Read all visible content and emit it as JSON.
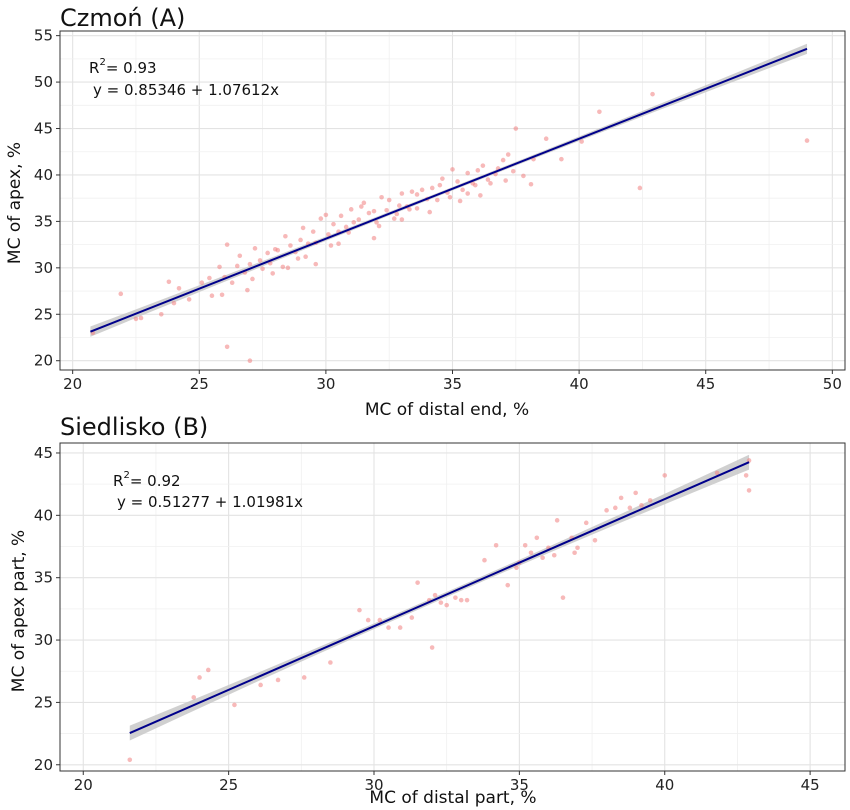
{
  "chart_data": [
    {
      "type": "scatter",
      "title": "Czmoń (A)",
      "xlabel": "MC of distal end, %",
      "ylabel": "MC of apex, %",
      "xlim": [
        19.5,
        50.5
      ],
      "ylim": [
        19,
        55.5
      ],
      "xticks": [
        20,
        25,
        30,
        35,
        40,
        45,
        50
      ],
      "yticks": [
        20,
        25,
        30,
        35,
        40,
        45,
        50,
        55
      ],
      "grid": true,
      "annotation": {
        "r2_prefix": "R",
        "r2_sup": "2",
        "r2_value": "= 0.93",
        "equation": "y = 0.85346 + 1.07612x"
      },
      "regression": {
        "intercept": 0.85346,
        "slope": 1.07612,
        "x_range": [
          20.7,
          49
        ],
        "ci_halfwidth": 0.55
      },
      "colors": {
        "points": "#f08080",
        "line": "#00008b",
        "band": "#c8c8c8"
      },
      "series": [
        {
          "x": [
            20.8,
            21.9,
            22.7,
            23.5,
            23.8,
            24.2,
            24.6,
            25.1,
            25.4,
            25.8,
            25.9,
            26.0,
            26.1,
            26.3,
            26.5,
            26.6,
            26.8,
            27.0,
            27.1,
            27.2,
            27.4,
            27.5,
            27.7,
            27.8,
            28.0,
            28.1,
            28.3,
            28.4,
            28.6,
            28.8,
            29.0,
            29.1,
            29.3,
            29.5,
            29.6,
            29.8,
            30.0,
            30.1,
            30.3,
            30.5,
            30.6,
            30.8,
            31.0,
            31.1,
            31.3,
            31.5,
            31.7,
            31.9,
            32.0,
            32.2,
            32.4,
            32.5,
            32.7,
            32.9,
            33.0,
            33.2,
            33.4,
            33.6,
            33.8,
            34.0,
            34.2,
            34.4,
            34.6,
            34.8,
            35.0,
            35.2,
            35.4,
            35.6,
            35.8,
            36.0,
            36.2,
            36.5,
            36.8,
            37.0,
            37.2,
            37.5,
            37.8,
            38.2,
            38.7,
            39.3,
            40.1,
            40.8,
            42.4,
            42.9,
            49.0,
            26.1,
            27.0,
            28.9,
            29.6,
            30.2,
            31.4,
            32.1,
            33.0,
            34.1,
            35.3,
            36.1,
            37.1,
            24.0,
            25.5,
            27.9,
            30.9,
            32.8,
            33.6,
            34.5,
            35.6,
            36.4,
            31.9,
            30.5,
            29.2,
            28.5,
            33.3,
            34.9,
            35.9,
            37.4,
            38.1,
            36.7,
            26.9,
            22.5
          ],
          "y": [
            23.0,
            27.2,
            24.6,
            25.0,
            28.5,
            27.8,
            26.6,
            28.4,
            28.9,
            30.1,
            27.1,
            29.0,
            32.5,
            28.4,
            30.2,
            31.3,
            29.5,
            30.4,
            28.8,
            32.1,
            30.8,
            29.9,
            31.6,
            30.5,
            32.0,
            31.9,
            30.1,
            33.4,
            32.4,
            31.7,
            33.0,
            34.3,
            32.6,
            33.9,
            32.7,
            35.3,
            35.7,
            33.6,
            34.7,
            33.9,
            35.6,
            34.4,
            36.3,
            34.9,
            35.2,
            37.0,
            35.9,
            36.1,
            34.9,
            37.6,
            36.2,
            37.3,
            35.3,
            36.7,
            38.0,
            36.6,
            38.2,
            36.4,
            38.4,
            37.4,
            38.6,
            37.3,
            39.6,
            38.1,
            40.6,
            39.3,
            38.4,
            40.2,
            39.1,
            40.5,
            41.0,
            39.1,
            40.7,
            41.6,
            42.2,
            45.0,
            39.9,
            41.7,
            43.9,
            41.7,
            43.6,
            46.8,
            38.6,
            48.7,
            43.7,
            21.5,
            20.0,
            31.0,
            30.4,
            32.4,
            36.6,
            34.5,
            35.2,
            36.0,
            37.2,
            37.8,
            39.4,
            26.2,
            27.0,
            29.4,
            33.8,
            35.8,
            37.9,
            38.9,
            38.0,
            39.5,
            33.2,
            32.6,
            31.2,
            30.0,
            36.3,
            37.6,
            38.9,
            40.4,
            39.0,
            40.1,
            27.6,
            24.5
          ]
        }
      ]
    },
    {
      "type": "scatter",
      "title": "Siedlisko (B)",
      "xlabel": "MC of distal part, %",
      "ylabel": "MC of apex part, %",
      "xlim": [
        19.2,
        46.2
      ],
      "ylim": [
        19.5,
        45.8
      ],
      "xticks": [
        20,
        25,
        30,
        35,
        40,
        45
      ],
      "yticks": [
        20,
        25,
        30,
        35,
        40,
        45
      ],
      "grid": true,
      "annotation": {
        "r2_prefix": "R",
        "r2_sup": "2",
        "r2_value": "= 0.92",
        "equation": "y = 0.51277 + 1.01981x"
      },
      "regression": {
        "intercept": 0.51277,
        "slope": 1.01981,
        "x_range": [
          21.6,
          42.9
        ],
        "ci_halfwidth": 0.6
      },
      "colors": {
        "points": "#f08080",
        "line": "#00008b",
        "band": "#c8c8c8"
      },
      "series": [
        {
          "x": [
            21.6,
            23.8,
            24.0,
            24.3,
            25.2,
            26.1,
            26.7,
            27.6,
            28.5,
            29.5,
            29.8,
            30.5,
            30.9,
            31.3,
            31.5,
            31.9,
            32.1,
            32.3,
            32.5,
            32.8,
            33.0,
            33.2,
            33.8,
            34.2,
            34.6,
            35.0,
            35.2,
            35.4,
            35.6,
            35.8,
            36.0,
            36.2,
            36.3,
            36.5,
            36.8,
            37.0,
            37.3,
            37.6,
            38.0,
            38.3,
            38.5,
            38.8,
            39.0,
            39.2,
            39.5,
            40.0,
            41.8,
            42.8,
            42.9,
            42.9,
            32.0,
            30.2,
            34.9,
            36.9
          ],
          "y": [
            20.4,
            25.4,
            27.0,
            27.6,
            24.8,
            26.4,
            26.8,
            27.0,
            28.2,
            32.4,
            31.6,
            31.0,
            31.0,
            31.8,
            34.6,
            33.2,
            33.6,
            33.0,
            32.8,
            33.4,
            33.2,
            33.2,
            36.4,
            37.6,
            34.4,
            36.2,
            37.6,
            37.0,
            38.2,
            36.6,
            37.4,
            36.8,
            39.6,
            33.4,
            38.2,
            37.4,
            39.4,
            38.0,
            40.4,
            40.6,
            41.4,
            40.6,
            41.8,
            40.8,
            41.2,
            43.2,
            43.4,
            43.2,
            42.0,
            44.4,
            29.4,
            31.6,
            35.8,
            37.0
          ]
        }
      ]
    }
  ]
}
